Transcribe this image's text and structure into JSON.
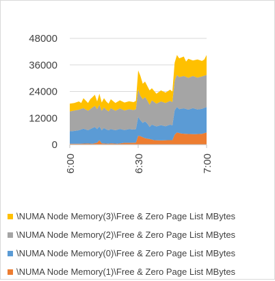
{
  "chart_data": {
    "type": "area",
    "stacked": true,
    "title": "",
    "xlabel": "",
    "ylabel": "",
    "ylim": [
      0,
      48000
    ],
    "yticks": [
      0,
      12000,
      24000,
      36000,
      48000
    ],
    "ytick_labels": [
      "0",
      "12000",
      "24000",
      "36000",
      "48000"
    ],
    "xticks": [
      0,
      30,
      60
    ],
    "xtick_labels": [
      "6:00",
      "6:30",
      "7:00"
    ],
    "x_unit": "minutes after 6:00",
    "grid": "horizontal",
    "legend_position": "bottom",
    "series": [
      {
        "name": "\\NUMA Node Memory(1)\\Free & Zero Page List MBytes",
        "color": "#ED7D31",
        "points": [
          [
            0,
            400
          ],
          [
            4,
            400
          ],
          [
            8,
            500
          ],
          [
            10,
            400
          ],
          [
            12,
            900
          ],
          [
            13,
            2000
          ],
          [
            14,
            600
          ],
          [
            17,
            400
          ],
          [
            18,
            600
          ],
          [
            21,
            400
          ],
          [
            24,
            800
          ],
          [
            27,
            800
          ],
          [
            29,
            900
          ],
          [
            30,
            4000
          ],
          [
            31,
            3800
          ],
          [
            33,
            2900
          ],
          [
            35,
            2500
          ],
          [
            37,
            2000
          ],
          [
            40,
            1900
          ],
          [
            43,
            2000
          ],
          [
            45,
            2000
          ],
          [
            46,
            4500
          ],
          [
            47,
            5500
          ],
          [
            49,
            5000
          ],
          [
            52,
            4800
          ],
          [
            55,
            4700
          ],
          [
            58,
            4900
          ],
          [
            60,
            5500
          ]
        ]
      },
      {
        "name": "\\NUMA Node Memory(0)\\Free & Zero Page List MBytes",
        "color": "#5B9BD5",
        "points": [
          [
            0,
            6000
          ],
          [
            2,
            6200
          ],
          [
            4,
            6500
          ],
          [
            6,
            7200
          ],
          [
            8,
            6500
          ],
          [
            10,
            7500
          ],
          [
            11,
            8000
          ],
          [
            12,
            7000
          ],
          [
            13,
            8200
          ],
          [
            14,
            6500
          ],
          [
            15,
            7500
          ],
          [
            16,
            6900
          ],
          [
            17,
            6500
          ],
          [
            18,
            7000
          ],
          [
            20,
            6500
          ],
          [
            22,
            7100
          ],
          [
            24,
            6600
          ],
          [
            26,
            7000
          ],
          [
            28,
            6800
          ],
          [
            29,
            7000
          ],
          [
            30,
            12500
          ],
          [
            31,
            11000
          ],
          [
            32,
            9800
          ],
          [
            33,
            10500
          ],
          [
            34,
            9500
          ],
          [
            35,
            8000
          ],
          [
            36,
            9000
          ],
          [
            38,
            8200
          ],
          [
            40,
            8800
          ],
          [
            42,
            8300
          ],
          [
            44,
            9000
          ],
          [
            45,
            8700
          ],
          [
            46,
            15500
          ],
          [
            47,
            17000
          ],
          [
            48,
            16000
          ],
          [
            50,
            16400
          ],
          [
            52,
            15800
          ],
          [
            54,
            16500
          ],
          [
            56,
            15900
          ],
          [
            58,
            16200
          ],
          [
            60,
            17000
          ]
        ]
      },
      {
        "name": "\\NUMA Node Memory(2)\\Free & Zero Page List MBytes",
        "color": "#A5A5A5",
        "points": [
          [
            0,
            15000
          ],
          [
            2,
            15400
          ],
          [
            4,
            15800
          ],
          [
            6,
            16500
          ],
          [
            8,
            15300
          ],
          [
            10,
            16800
          ],
          [
            11,
            17500
          ],
          [
            12,
            16000
          ],
          [
            13,
            18000
          ],
          [
            14,
            15300
          ],
          [
            15,
            16800
          ],
          [
            16,
            15800
          ],
          [
            17,
            15000
          ],
          [
            18,
            16500
          ],
          [
            20,
            15300
          ],
          [
            22,
            16400
          ],
          [
            24,
            15400
          ],
          [
            26,
            16000
          ],
          [
            28,
            15600
          ],
          [
            29,
            16000
          ],
          [
            30,
            25000
          ],
          [
            31,
            22000
          ],
          [
            32,
            20500
          ],
          [
            33,
            21500
          ],
          [
            34,
            20000
          ],
          [
            35,
            18000
          ],
          [
            36,
            20000
          ],
          [
            38,
            18500
          ],
          [
            40,
            19500
          ],
          [
            42,
            18800
          ],
          [
            44,
            19800
          ],
          [
            45,
            19200
          ],
          [
            46,
            29000
          ],
          [
            47,
            31500
          ],
          [
            48,
            30500
          ],
          [
            50,
            31000
          ],
          [
            52,
            30200
          ],
          [
            54,
            31000
          ],
          [
            56,
            30300
          ],
          [
            58,
            30800
          ],
          [
            60,
            31500
          ]
        ]
      },
      {
        "name": "\\NUMA Node Memory(3)\\Free & Zero Page List MBytes",
        "color": "#FFC000",
        "points": [
          [
            0,
            18500
          ],
          [
            2,
            18800
          ],
          [
            4,
            19500
          ],
          [
            5,
            18800
          ],
          [
            6,
            21000
          ],
          [
            8,
            18800
          ],
          [
            9,
            20500
          ],
          [
            10,
            21500
          ],
          [
            11,
            22500
          ],
          [
            12,
            19500
          ],
          [
            13,
            23000
          ],
          [
            14,
            19000
          ],
          [
            15,
            21000
          ],
          [
            16,
            19500
          ],
          [
            17,
            18500
          ],
          [
            18,
            20500
          ],
          [
            20,
            18800
          ],
          [
            22,
            20000
          ],
          [
            24,
            19000
          ],
          [
            26,
            19600
          ],
          [
            28,
            19200
          ],
          [
            29,
            19800
          ],
          [
            30,
            33500
          ],
          [
            31,
            31000
          ],
          [
            32,
            27500
          ],
          [
            33,
            28500
          ],
          [
            34,
            26500
          ],
          [
            35,
            24500
          ],
          [
            36,
            25500
          ],
          [
            38,
            23000
          ],
          [
            40,
            24500
          ],
          [
            42,
            23500
          ],
          [
            44,
            24800
          ],
          [
            45,
            24000
          ],
          [
            46,
            37000
          ],
          [
            47,
            40500
          ],
          [
            48,
            39000
          ],
          [
            50,
            39800
          ],
          [
            51,
            37500
          ],
          [
            52,
            38800
          ],
          [
            54,
            38000
          ],
          [
            56,
            38500
          ],
          [
            58,
            37800
          ],
          [
            59,
            38500
          ],
          [
            60,
            40500
          ]
        ]
      }
    ]
  }
}
